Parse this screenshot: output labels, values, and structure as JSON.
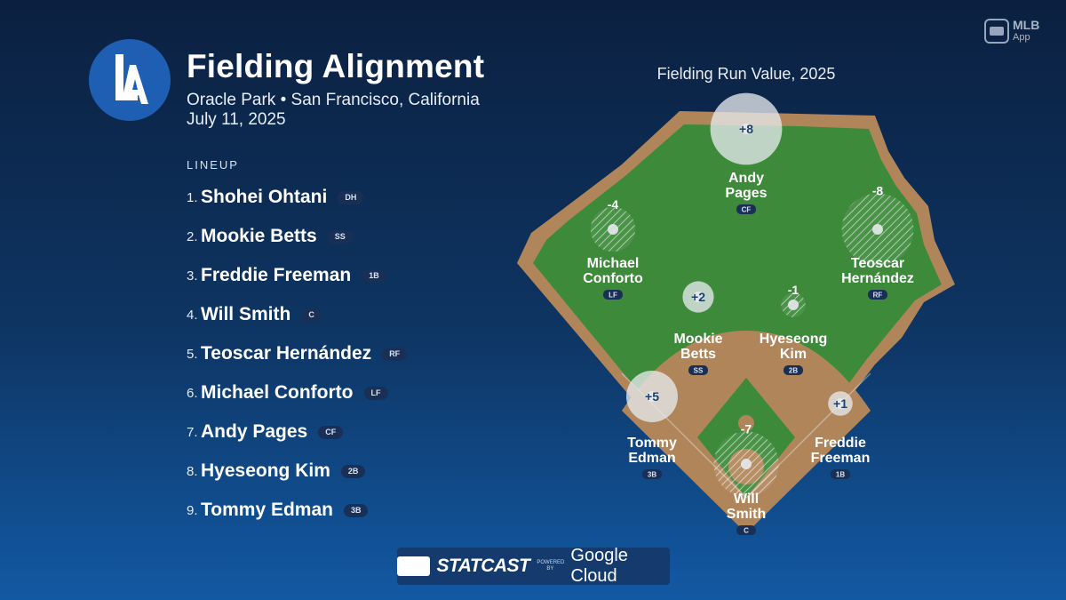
{
  "header": {
    "logo_text": "LA",
    "title": "Fielding Alignment",
    "venue": "Oracle Park • San Francisco, California",
    "date": "July 11, 2025"
  },
  "app_badge": {
    "line1": "MLB",
    "line2": "App"
  },
  "lineup": {
    "heading": "LINEUP",
    "players": [
      {
        "num": "1.",
        "name": "Shohei Ohtani",
        "pos": "DH"
      },
      {
        "num": "2.",
        "name": "Mookie Betts",
        "pos": "SS"
      },
      {
        "num": "3.",
        "name": "Freddie Freeman",
        "pos": "1B"
      },
      {
        "num": "4.",
        "name": "Will Smith",
        "pos": "C"
      },
      {
        "num": "5.",
        "name": "Teoscar Hernández",
        "pos": "RF"
      },
      {
        "num": "6.",
        "name": "Michael Conforto",
        "pos": "LF"
      },
      {
        "num": "7.",
        "name": "Andy Pages",
        "pos": "CF"
      },
      {
        "num": "8.",
        "name": "Hyeseong Kim",
        "pos": "2B"
      },
      {
        "num": "9.",
        "name": "Tommy Edman",
        "pos": "3B"
      }
    ]
  },
  "field": {
    "title": "Fielding Run Value, 2025",
    "positions": [
      {
        "pos": "CF",
        "first": "Andy",
        "last": "Pages",
        "frv": "+8",
        "value": 8
      },
      {
        "pos": "LF",
        "first": "Michael",
        "last": "Conforto",
        "frv": "-4",
        "value": -4
      },
      {
        "pos": "RF",
        "first": "Teoscar",
        "last": "Hernández",
        "frv": "-8",
        "value": -8
      },
      {
        "pos": "SS",
        "first": "Mookie",
        "last": "Betts",
        "frv": "+2",
        "value": 2
      },
      {
        "pos": "2B",
        "first": "Hyeseong",
        "last": "Kim",
        "frv": "-1",
        "value": -1
      },
      {
        "pos": "3B",
        "first": "Tommy",
        "last": "Edman",
        "frv": "+5",
        "value": 5
      },
      {
        "pos": "1B",
        "first": "Freddie",
        "last": "Freeman",
        "frv": "+1",
        "value": 1
      },
      {
        "pos": "C",
        "first": "Will",
        "last": "Smith",
        "frv": "-7",
        "value": -7
      }
    ]
  },
  "colors": {
    "grass": "#3d8a3b",
    "dirt": "#b0855a",
    "positive_bubble": "#e6e9ec",
    "negative_bubble": "#dfe3e6",
    "value_text": "#1c3f6e"
  },
  "footer": {
    "brand": "STATCAST",
    "powered_by": "POWERED BY",
    "cloud": "Google Cloud"
  }
}
